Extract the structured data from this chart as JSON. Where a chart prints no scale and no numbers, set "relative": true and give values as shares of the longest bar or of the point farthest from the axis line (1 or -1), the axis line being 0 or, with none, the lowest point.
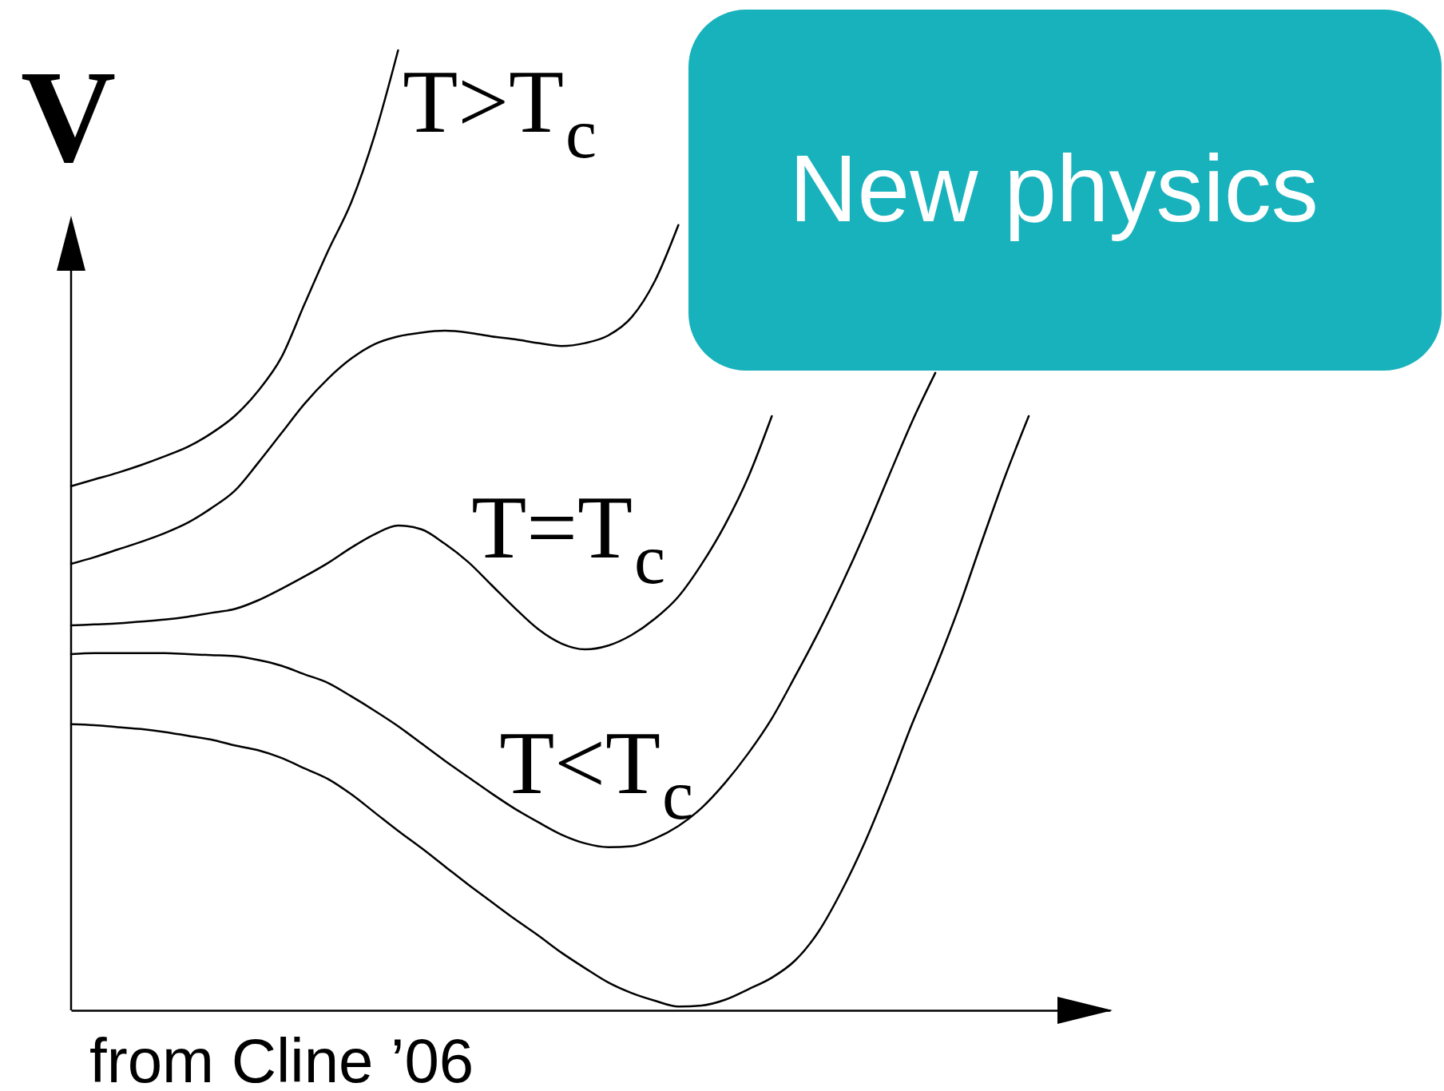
{
  "chart_data": {
    "type": "line",
    "relative": true,
    "ylabel": "V",
    "categories": [
      null,
      null,
      null,
      null,
      null,
      null,
      null,
      null,
      null,
      null,
      null,
      null,
      null,
      null,
      null,
      null,
      null,
      null,
      null,
      null,
      null,
      null,
      null,
      null,
      null,
      null,
      null,
      null,
      null,
      null,
      null,
      null,
      null,
      null,
      null,
      null,
      null,
      null,
      null,
      null,
      null,
      null
    ],
    "series": [
      {
        "name": "T>T$_{c}$",
        "color": "#000000",
        "values": [
          0.546,
          0.553,
          0.56,
          0.568,
          0.577,
          0.587,
          0.601,
          0.619,
          0.645,
          0.68,
          0.736,
          0.791,
          0.842,
          0.912,
          1.0,
          null,
          null,
          null,
          null,
          null,
          null,
          null,
          null,
          null,
          null,
          null,
          null,
          null,
          null,
          null,
          null,
          null,
          null,
          null,
          null,
          null,
          null,
          null,
          null,
          null,
          null,
          null
        ]
      },
      {
        "color": "#000000",
        "values": [
          0.465,
          0.472,
          0.48,
          0.488,
          0.497,
          0.508,
          0.523,
          0.541,
          0.57,
          0.601,
          0.632,
          0.658,
          0.679,
          0.694,
          0.702,
          0.706,
          0.708,
          0.706,
          0.702,
          0.699,
          0.695,
          0.692,
          0.695,
          0.703,
          0.722,
          0.76,
          0.818,
          null,
          null,
          null,
          null,
          null,
          null,
          null,
          null,
          null,
          null,
          null,
          null,
          null,
          null,
          null
        ]
      },
      {
        "name": "T=T$_{c}$",
        "color": "#000000",
        "values": [
          0.401,
          0.402,
          0.403,
          0.405,
          0.407,
          0.41,
          0.414,
          0.418,
          0.427,
          0.439,
          0.452,
          0.466,
          0.482,
          0.496,
          0.505,
          0.501,
          0.486,
          0.467,
          0.443,
          0.419,
          0.397,
          0.382,
          0.376,
          0.38,
          0.391,
          0.408,
          0.431,
          0.465,
          0.506,
          0.556,
          0.619,
          null,
          null,
          null,
          null,
          null,
          null,
          null,
          null,
          null,
          null,
          null
        ]
      },
      {
        "name": "T<T$_{c}$",
        "color": "#000000",
        "values": [
          0.371,
          0.372,
          0.372,
          0.372,
          0.372,
          0.371,
          0.37,
          0.369,
          0.365,
          0.359,
          0.35,
          0.341,
          0.327,
          0.312,
          0.296,
          0.278,
          0.26,
          0.243,
          0.226,
          0.21,
          0.196,
          0.183,
          0.174,
          0.17,
          0.171,
          0.179,
          0.192,
          0.211,
          0.237,
          0.268,
          0.304,
          0.348,
          0.394,
          0.444,
          0.498,
          0.556,
          0.613,
          0.664,
          null,
          null,
          null,
          null
        ]
      },
      {
        "color": "#000000",
        "values": [
          0.298,
          0.297,
          0.295,
          0.293,
          0.29,
          0.286,
          0.282,
          0.276,
          0.271,
          0.263,
          0.252,
          0.241,
          0.225,
          0.206,
          0.187,
          0.169,
          0.15,
          0.131,
          0.113,
          0.095,
          0.078,
          0.06,
          0.044,
          0.029,
          0.018,
          0.01,
          0.004,
          0.005,
          0.011,
          0.022,
          0.034,
          0.052,
          0.082,
          0.125,
          0.176,
          0.235,
          0.298,
          0.356,
          0.419,
          0.489,
          0.557,
          0.619
        ]
      }
    ],
    "annotations": [
      "from Cline ’06",
      "New physics"
    ]
  }
}
